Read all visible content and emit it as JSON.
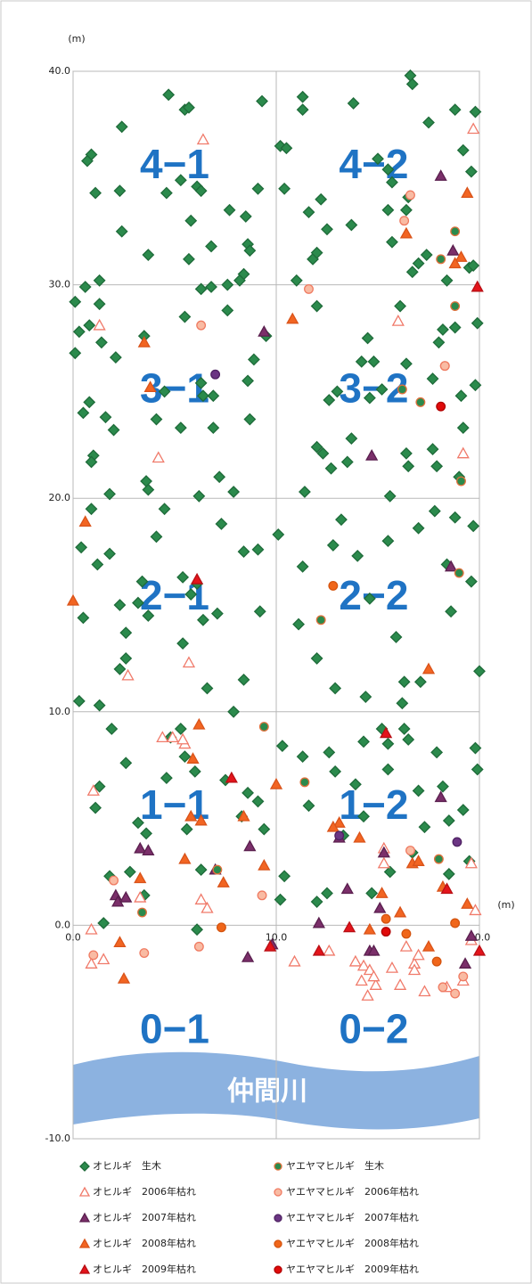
{
  "chart_data": {
    "type": "scatter",
    "xlabel": "(m)",
    "ylabel": "(m)",
    "xlim": [
      0,
      20
    ],
    "ylim": [
      -10,
      40
    ],
    "xticks": [
      {
        "value": 0,
        "label": "0.0"
      },
      {
        "value": 10,
        "label": "10.0"
      },
      {
        "value": 20,
        "label": "20.0"
      }
    ],
    "yticks": [
      {
        "value": -10,
        "label": "-10.0"
      },
      {
        "value": 0,
        "label": "0.0"
      },
      {
        "value": 10,
        "label": "10.0"
      },
      {
        "value": 20,
        "label": "20.0"
      },
      {
        "value": 30,
        "label": "30.0"
      },
      {
        "value": 40,
        "label": "40.0"
      }
    ],
    "grid": true,
    "annotations": [
      "4−1",
      "4−2",
      "3−1",
      "3−2",
      "2−1",
      "2−2",
      "1−1",
      "1−2",
      "0−1",
      "0−2",
      "仲間川"
    ],
    "series": [
      {
        "name": "オヒルギ　生木",
        "marker": "diamond",
        "color": "#2b8a4c",
        "edgecolor": "#1f6b3a",
        "x": [
          4.7,
          5.5,
          5.7,
          5.3,
          4.6,
          6.1,
          6.3,
          5.8,
          5.7,
          6.8,
          6.3,
          6.8,
          7.7,
          8.5,
          8.6,
          8.7,
          8.4,
          8.2,
          7.6,
          9.1,
          9.3,
          10.2,
          10.5,
          11.3,
          11.3,
          10.4,
          11.6,
          11.8,
          12,
          11,
          12.2,
          12.5,
          13.8,
          13.7,
          15,
          15.5,
          15.7,
          15.5,
          15.7,
          16.4,
          16.5,
          16.6,
          16.7,
          17.5,
          18.8,
          19.2,
          19.6,
          19.5,
          19.7,
          17,
          17.4,
          18.4,
          16.7,
          0.6,
          19.8,
          0.9,
          0.7,
          1.1,
          1.3,
          2.4,
          2.3,
          2.4,
          3.7,
          0.1,
          0.1,
          0.3,
          0.8,
          1.3,
          1.4,
          0.5,
          0.8,
          1,
          0.9,
          1.6,
          2,
          2.1,
          1.8,
          3.6,
          3.7,
          3.5,
          4.5,
          4.1,
          5.3,
          6.3,
          6.4,
          6.9,
          6.9,
          5.5,
          7.6,
          6.2,
          7.2,
          7.9,
          8.7,
          8.6,
          8.9,
          9.5,
          12,
          13,
          12.6,
          12,
          12.3,
          12.7,
          13.5,
          13.7,
          14.6,
          14.2,
          14.5,
          14.8,
          15.2,
          16.1,
          16.4,
          16.4,
          15.6,
          16.5,
          17.7,
          17.7,
          18,
          18.2,
          18.8,
          19.1,
          19.2,
          19,
          19.8,
          19.9,
          17.9,
          0.4,
          0.5,
          0.9,
          1.8,
          1.2,
          2.3,
          2.6,
          2.6,
          2.3,
          3.2,
          3.7,
          3.4,
          4.1,
          4.5,
          5.4,
          5.8,
          5.4,
          6.1,
          6.4,
          7.3,
          7.1,
          6.6,
          8.4,
          9.1,
          9.2,
          8.4,
          7.9,
          10.1,
          11.3,
          11.4,
          11.1,
          12.8,
          13.2,
          14,
          14.6,
          15.5,
          15.9,
          16.3,
          16.2,
          17.1,
          17,
          17.8,
          18.8,
          18.4,
          18.6,
          19.6,
          19.7,
          20,
          0.3,
          1.3,
          14.4,
          12.9,
          12,
          1.1,
          1.3,
          1.9,
          1.8,
          1.5,
          2.6,
          2.8,
          3.2,
          3.6,
          3.5,
          4.6,
          4.8,
          5.3,
          5.5,
          6,
          5.6,
          6.3,
          6.1,
          7.5,
          8.3,
          9.1,
          9.4,
          8.6,
          10.3,
          10.4,
          10.2,
          11.3,
          11.6,
          12.6,
          12.9,
          13.3,
          13.9,
          14.3,
          14.3,
          14.7,
          15.2,
          15.5,
          15.5,
          16.3,
          16.5,
          17,
          17.9,
          18.2,
          18.5,
          19.2,
          19.8,
          19.9,
          19.5,
          16.7,
          17.3,
          18.5,
          15.6,
          12,
          12.5
        ],
        "y": [
          38.9,
          38.2,
          38.3,
          34.9,
          34.3,
          34.6,
          34.4,
          33,
          31.2,
          31.8,
          29.8,
          29.9,
          33.5,
          33.2,
          31.9,
          31.6,
          30.5,
          30.2,
          30,
          34.5,
          38.6,
          36.5,
          36.4,
          38.8,
          38.2,
          34.5,
          33.4,
          31.2,
          31.5,
          30.2,
          34,
          32.6,
          38.5,
          32.8,
          35.9,
          35.4,
          34.8,
          33.5,
          32,
          33.5,
          34.1,
          39.8,
          39.4,
          37.6,
          38.2,
          36.3,
          35.3,
          30.8,
          30.9,
          31,
          31.4,
          30.2,
          30.6,
          29.9,
          38.1,
          36.1,
          35.8,
          34.3,
          30.2,
          37.4,
          34.4,
          32.5,
          31.4,
          29.2,
          26.8,
          27.8,
          28.1,
          29.1,
          27.3,
          24,
          24.5,
          22,
          21.7,
          23.8,
          23.2,
          26.6,
          20.2,
          20.8,
          20.4,
          27.6,
          25,
          23.7,
          23.3,
          25.4,
          24.8,
          24.8,
          23.3,
          28.5,
          28.8,
          20.1,
          21,
          20.3,
          23.7,
          25.5,
          26.5,
          27.6,
          29,
          25,
          24.6,
          22.4,
          22.1,
          21.4,
          21.7,
          22.8,
          24.7,
          26.4,
          27.5,
          26.4,
          25.1,
          29,
          26.3,
          22.1,
          20.1,
          21.5,
          22.3,
          25.6,
          27.3,
          27.9,
          28,
          24.8,
          23.3,
          21,
          25.3,
          28.2,
          21.5,
          17.7,
          14.4,
          19.5,
          17.4,
          16.9,
          15,
          13.7,
          12.5,
          12,
          15.1,
          14.5,
          16.1,
          18.2,
          19.5,
          16.3,
          15.5,
          13.2,
          16,
          14.3,
          18.8,
          14.6,
          11.1,
          17.5,
          17.6,
          14.7,
          11.5,
          10,
          18.3,
          16.8,
          20.3,
          14.1,
          17.8,
          19,
          17.3,
          15.3,
          18,
          13.5,
          11.4,
          10.4,
          11.4,
          18.6,
          19.4,
          19.1,
          16.9,
          14.7,
          16.1,
          18.7,
          11.9,
          10.5,
          10.3,
          10.7,
          11.1,
          12.5,
          5.5,
          6.5,
          9.2,
          2.3,
          0.1,
          7.6,
          2.5,
          4.8,
          4.3,
          1.4,
          6.9,
          8.8,
          9.2,
          7.9,
          7.2,
          4.5,
          2.6,
          -0.2,
          6.8,
          5.1,
          5.8,
          4.5,
          6.2,
          8.4,
          2.3,
          1.2,
          7.9,
          5.6,
          8.1,
          7.2,
          4.2,
          6.6,
          8.6,
          5.1,
          1.5,
          9.2,
          8.5,
          7.3,
          9.2,
          8.7,
          6.3,
          8.1,
          6.5,
          4.9,
          5.4,
          8.3,
          7.3,
          3,
          3.4,
          4.6,
          2.4,
          2.5,
          1.1,
          1.5
        ]
      },
      {
        "name": "オヒルギ　2006年枯れ",
        "marker": "triangle",
        "color": "#ffffff",
        "edgecolor": "#f07a6a",
        "x": [
          6.4,
          19.7,
          1.3,
          4.2,
          16,
          19.2,
          2.7,
          5.7,
          5.5,
          5.4,
          1,
          3.3,
          0.9,
          0.9,
          1.5,
          4.4,
          4.9,
          6.6,
          6.3,
          10.9,
          12.6,
          13.9,
          14.3,
          14.6,
          14.2,
          14.9,
          14.8,
          14.5,
          15.7,
          16.4,
          16.8,
          16.8,
          17,
          16.1,
          17.3,
          18.4,
          19.2,
          19.6,
          19.8,
          19.6,
          15.3,
          15.3
        ],
        "y": [
          36.8,
          37.3,
          28.1,
          21.9,
          28.3,
          22.1,
          11.7,
          12.3,
          8.5,
          8.7,
          6.3,
          1.3,
          -0.2,
          -1.8,
          -1.6,
          8.8,
          8.8,
          0.8,
          1.2,
          -1.7,
          -1.2,
          -1.7,
          -1.9,
          -2.1,
          -2.6,
          -2.8,
          -2.4,
          -3.3,
          -2,
          -1,
          -1.8,
          -2.1,
          -1.4,
          -2.8,
          -3.1,
          -2.9,
          -2.6,
          -0.7,
          0.7,
          2.9,
          3.6,
          2.9
        ]
      },
      {
        "name": "オヒルギ　2007年枯れ",
        "marker": "triangle",
        "color": "#7b2f6a",
        "edgecolor": "#5a1f4e",
        "x": [
          9.4,
          18.1,
          18.7,
          14.7,
          18.6,
          3.3,
          3.7,
          2.1,
          2.2,
          2.6,
          7,
          8.7,
          9.8,
          12.1,
          13.1,
          13.5,
          14.6,
          15.1,
          15.3,
          18.1,
          19.3,
          19.6,
          14.8,
          8.6
        ],
        "y": [
          27.8,
          35.1,
          31.6,
          22,
          16.8,
          3.6,
          3.5,
          1.4,
          1.1,
          1.3,
          2.6,
          3.7,
          -0.9,
          0.1,
          4.1,
          1.7,
          -1.2,
          0.8,
          3.4,
          6,
          -1.8,
          -0.5,
          -1.2,
          -1.5
        ]
      },
      {
        "name": "オヒルギ　2008年枯れ",
        "marker": "triangle",
        "color": "#f26522",
        "edgecolor": "#d9531a",
        "x": [
          3.5,
          3.8,
          10.8,
          19.4,
          19.1,
          0.6,
          0,
          17.5,
          18.8,
          16.4,
          6.2,
          5.9,
          5.8,
          6.3,
          5.5,
          3.3,
          2.3,
          2.5,
          7.4,
          8.4,
          9.4,
          10,
          13.1,
          12.8,
          14.1,
          15.2,
          16.7,
          17,
          17.5,
          18.2,
          19.4,
          16.1,
          14.6
        ],
        "y": [
          27.3,
          25.2,
          28.4,
          34.3,
          31.3,
          18.9,
          15.2,
          12,
          31,
          32.4,
          9.4,
          7.8,
          5.1,
          4.9,
          3.1,
          2.2,
          -0.8,
          -2.5,
          2,
          5.1,
          2.8,
          6.6,
          4.8,
          4.6,
          4.1,
          1.5,
          2.9,
          3,
          -1,
          1.8,
          1,
          0.6,
          -0.2
        ]
      },
      {
        "name": "オヒルギ　2009年枯れ",
        "marker": "triangle",
        "color": "#e3141b",
        "edgecolor": "#b80f14",
        "x": [
          19.9,
          6.1,
          15.4,
          7.8,
          12.1,
          13.6,
          18.4,
          20,
          9.7
        ],
        "y": [
          29.9,
          16.2,
          9,
          6.9,
          -1.2,
          -0.1,
          1.7,
          -1.2,
          -1
        ]
      },
      {
        "name": "ヤエヤマヒルギ　生木",
        "marker": "circle",
        "color": "#2b8a4c",
        "edgecolor": "#e0703c",
        "x": [
          16.2,
          17.1,
          18.3,
          18.8,
          18.8,
          18.1,
          19.1,
          19,
          12.2,
          9.4,
          11.4,
          3.4,
          7.1,
          18
        ],
        "y": [
          25.1,
          24.5,
          26.2,
          29,
          32.5,
          31.2,
          20.8,
          16.5,
          14.3,
          9.3,
          6.7,
          0.6,
          2.6,
          3.1
        ]
      },
      {
        "name": "ヤエヤマヒルギ　2006年枯れ",
        "marker": "circle",
        "color": "#f9bba3",
        "edgecolor": "#ef7b62",
        "x": [
          6.3,
          11.6,
          16.3,
          16.6,
          18.3,
          2,
          3.5,
          6.2,
          1,
          9.3,
          16.6,
          18.8,
          19.2,
          18.2
        ],
        "y": [
          28.1,
          29.8,
          33,
          34.2,
          26.2,
          2.1,
          -1.3,
          -1,
          -1.4,
          1.4,
          3.5,
          -3.2,
          -2.4,
          -2.9
        ]
      },
      {
        "name": "ヤエヤマヒルギ　2007年枯れ",
        "marker": "circle",
        "color": "#6b3583",
        "edgecolor": "#4e2262",
        "x": [
          7,
          18.9,
          13.1
        ],
        "y": [
          25.8,
          3.9,
          4.2
        ]
      },
      {
        "name": "ヤエヤマヒルギ　2008年枯れ",
        "marker": "circle",
        "color": "#f0661a",
        "edgecolor": "#d4540f",
        "x": [
          12.8,
          7.3,
          15.4,
          17.9,
          18.8,
          16.4
        ],
        "y": [
          15.9,
          -0.1,
          0.3,
          -1.7,
          0.1,
          -0.4
        ]
      },
      {
        "name": "ヤエヤマヒルギ　2009年枯れ",
        "marker": "circle",
        "color": "#e00a0a",
        "edgecolor": "#b00000",
        "x": [
          18.1,
          15.4
        ],
        "y": [
          24.3,
          -0.3
        ]
      }
    ]
  }
}
